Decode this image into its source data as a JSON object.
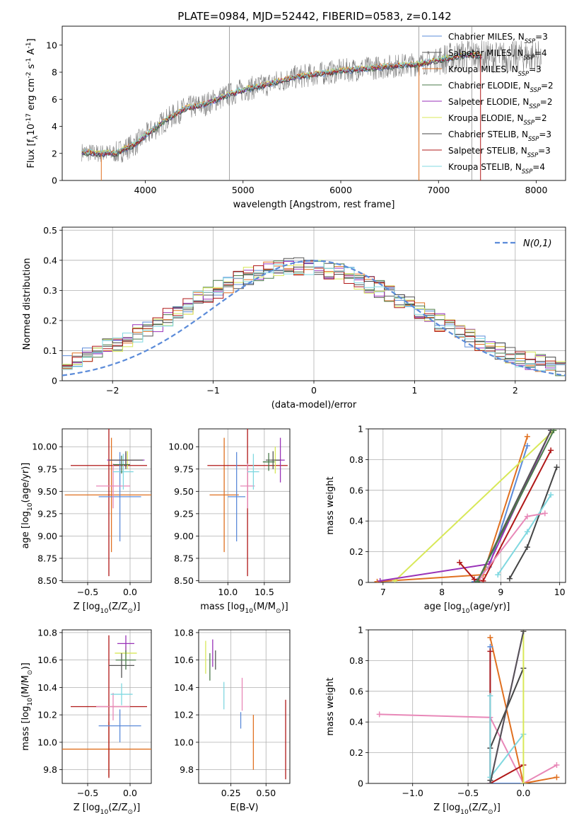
{
  "figure": {
    "title": "PLATE=0984, MJD=52442, FIBERID=0583, z=0.142"
  },
  "chart_data": [
    {
      "id": "spectrum",
      "type": "line",
      "xlabel": "wavelength [Angstrom, rest frame]",
      "ylabel": "Flux [f_λ10^-17 erg cm^-2 s^-1 A^-1]",
      "xlim": [
        3150,
        8300
      ],
      "ylim": [
        0,
        11.4
      ],
      "xticks": [
        4000,
        5000,
        6000,
        7000,
        8000
      ],
      "yticks": [
        0,
        2,
        4,
        6,
        8,
        10
      ],
      "grid": false,
      "legend_position": "top-right",
      "continuum": [
        [
          3350,
          2.1
        ],
        [
          3500,
          2.0
        ],
        [
          3700,
          2.0
        ],
        [
          3900,
          2.7
        ],
        [
          4000,
          3.3
        ],
        [
          4200,
          4.4
        ],
        [
          4400,
          5.3
        ],
        [
          4600,
          5.6
        ],
        [
          4800,
          6.2
        ],
        [
          5000,
          6.7
        ],
        [
          5200,
          7.0
        ],
        [
          5500,
          7.6
        ],
        [
          5800,
          7.9
        ],
        [
          6000,
          8.1
        ],
        [
          6300,
          8.3
        ],
        [
          6600,
          8.5
        ],
        [
          6800,
          8.6
        ],
        [
          7000,
          8.9
        ],
        [
          7300,
          9.3
        ],
        [
          7600,
          9.1
        ],
        [
          8000,
          9.2
        ],
        [
          8050,
          9.1
        ]
      ],
      "series": [
        {
          "name": "Chabrier MILES, N_SSP=3",
          "color": "#5b8bd9"
        },
        {
          "name": "Salpeter MILES, N_SSP=4",
          "color": "#555555"
        },
        {
          "name": "Kroupa MILES, N_SSP=3",
          "color": "#e07020"
        },
        {
          "name": "Chabrier ELODIE, N_SSP=2",
          "color": "#4a7a4a"
        },
        {
          "name": "Salpeter ELODIE, N_SSP=2",
          "color": "#9932b8"
        },
        {
          "name": "Kroupa ELODIE, N_SSP=2",
          "color": "#d8e858"
        },
        {
          "name": "Chabrier STELIB, N_SSP=3",
          "color": "#444444"
        },
        {
          "name": "Salpeter STELIB, N_SSP=3",
          "color": "#b01818"
        },
        {
          "name": "Kroupa STELIB, N_SSP=4",
          "color": "#80d8e0"
        }
      ]
    },
    {
      "id": "residuals",
      "type": "line",
      "xlabel": "(data-model)/error",
      "ylabel": "Normed distribution",
      "xlim": [
        -2.5,
        2.5
      ],
      "ylim": [
        0,
        0.51
      ],
      "xticks": [
        -2,
        -1,
        0,
        1,
        2
      ],
      "yticks": [
        0.0,
        0.1,
        0.2,
        0.3,
        0.4,
        0.5
      ],
      "grid": true,
      "legend_position": "top-right",
      "legend": "N(0,1)",
      "gaussian": {
        "mean": 0,
        "sigma": 1,
        "color": "#5b8bd9"
      },
      "bin_width": 0.1
    },
    {
      "id": "age_vs_Z",
      "type": "scatter",
      "xlabel": "Z [log10(Z/Z⊙)]",
      "ylabel": "age [log10(age/yr)]",
      "xlim": [
        -0.8,
        0.25
      ],
      "ylim": [
        8.48,
        10.2
      ],
      "xticks": [
        -0.5,
        0.0
      ],
      "xticklabels": [
        "−0.5",
        "0.0"
      ],
      "yticks": [
        8.5,
        8.75,
        9.0,
        9.25,
        9.5,
        9.75,
        10.0
      ],
      "yticklabels": [
        "8.50",
        "8.75",
        "9.00",
        "9.25",
        "9.50",
        "9.75",
        "10.00"
      ],
      "grid": true,
      "points": [
        {
          "x": -0.22,
          "y": 9.46,
          "xerr": 0.55,
          "yerr": 0.64,
          "color": "#e07020"
        },
        {
          "x": -0.25,
          "y": 9.79,
          "xerr": 0.45,
          "yerr": 1.24,
          "color": "#b01818"
        },
        {
          "x": -0.12,
          "y": 9.44,
          "xerr": 0.25,
          "yerr": 0.5,
          "color": "#5b8bd9"
        },
        {
          "x": -0.2,
          "y": 9.56,
          "xerr": 0.2,
          "yerr": 0.25,
          "color": "#e888b8"
        },
        {
          "x": -0.08,
          "y": 9.72,
          "xerr": 0.12,
          "yerr": 0.2,
          "color": "#80d8e0"
        },
        {
          "x": -0.03,
          "y": 9.85,
          "xerr": 0.13,
          "yerr": 0.1,
          "color": "#d8e858"
        },
        {
          "x": -0.05,
          "y": 9.85,
          "xerr": 0.22,
          "yerr": 0.08,
          "color": "#9932b8"
        },
        {
          "x": -0.05,
          "y": 9.85,
          "xerr": 0.2,
          "yerr": 0.1,
          "color": "#555555"
        },
        {
          "x": -0.1,
          "y": 9.8,
          "xerr": 0.1,
          "yerr": 0.1,
          "color": "#4a7a4a"
        }
      ]
    },
    {
      "id": "age_vs_mass",
      "type": "scatter",
      "xlabel": "mass [log10(M/M⊙)]",
      "ylabel": "",
      "xlim": [
        9.6,
        10.85
      ],
      "ylim": [
        8.48,
        10.2
      ],
      "xticks": [
        10.0,
        10.5
      ],
      "xticklabels": [
        "10.0",
        "10.5"
      ],
      "yticks": [
        8.5,
        8.75,
        9.0,
        9.25,
        9.5,
        9.75,
        10.0
      ],
      "yticklabels": [
        "8.50",
        "8.75",
        "9.00",
        "9.25",
        "9.50",
        "9.75",
        "10.00"
      ],
      "grid": true,
      "points": [
        {
          "x": 9.95,
          "y": 9.46,
          "xerr": 0.2,
          "yerr": 0.64,
          "color": "#e07020"
        },
        {
          "x": 10.27,
          "y": 9.79,
          "xerr": 0.55,
          "yerr": 1.24,
          "color": "#b01818"
        },
        {
          "x": 10.12,
          "y": 9.44,
          "xerr": 0.12,
          "yerr": 0.5,
          "color": "#5b8bd9"
        },
        {
          "x": 10.27,
          "y": 9.56,
          "xerr": 0.1,
          "yerr": 0.25,
          "color": "#e888b8"
        },
        {
          "x": 10.35,
          "y": 9.72,
          "xerr": 0.08,
          "yerr": 0.2,
          "color": "#80d8e0"
        },
        {
          "x": 10.65,
          "y": 9.85,
          "xerr": 0.05,
          "yerr": 0.15,
          "color": "#d8e858"
        },
        {
          "x": 10.72,
          "y": 9.85,
          "xerr": 0.06,
          "yerr": 0.25,
          "color": "#9932b8"
        },
        {
          "x": 10.62,
          "y": 9.85,
          "xerr": 0.1,
          "yerr": 0.1,
          "color": "#555555"
        },
        {
          "x": 10.56,
          "y": 9.83,
          "xerr": 0.08,
          "yerr": 0.1,
          "color": "#4a7a4a"
        }
      ]
    },
    {
      "id": "weight_vs_age",
      "type": "line",
      "xlabel": "age [log10(age/yr)]",
      "ylabel": "mass weight",
      "xlim": [
        6.75,
        10.1
      ],
      "ylim": [
        0,
        1.0
      ],
      "xticks": [
        7,
        8,
        9,
        10
      ],
      "yticks": [
        0.0,
        0.2,
        0.4,
        0.6,
        0.8,
        1.0
      ],
      "grid": true,
      "series": [
        {
          "color": "#e07020",
          "x": [
            6.9,
            8.7,
            9.45
          ],
          "y": [
            0.005,
            0.05,
            0.95
          ]
        },
        {
          "color": "#5b8bd9",
          "x": [
            8.55,
            8.8,
            9.45
          ],
          "y": [
            0.005,
            0.1,
            0.89
          ]
        },
        {
          "color": "#d8e858",
          "x": [
            7.2,
            9.9
          ],
          "y": [
            0.01,
            0.99
          ]
        },
        {
          "color": "#9932b8",
          "x": [
            6.95,
            8.8,
            9.85
          ],
          "y": [
            0.01,
            0.12,
            0.99
          ]
        },
        {
          "color": "#b01818",
          "x": [
            8.3,
            8.55,
            8.7,
            9.85
          ],
          "y": [
            0.13,
            0.02,
            0.01,
            0.86
          ]
        },
        {
          "color": "#555555",
          "x": [
            8.6,
            9.85
          ],
          "y": [
            0.005,
            0.99
          ]
        },
        {
          "color": "#444444",
          "x": [
            9.15,
            9.45,
            9.95
          ],
          "y": [
            0.025,
            0.23,
            0.75
          ]
        },
        {
          "color": "#80d8e0",
          "x": [
            8.95,
            9.45,
            9.85
          ],
          "y": [
            0.05,
            0.33,
            0.57
          ]
        },
        {
          "color": "#e888b8",
          "x": [
            8.65,
            9.45,
            9.75
          ],
          "y": [
            0.03,
            0.43,
            0.45
          ]
        },
        {
          "color": "#4a7a4a",
          "x": [
            8.6,
            9.9
          ],
          "y": [
            0.005,
            0.99
          ]
        }
      ]
    },
    {
      "id": "mass_vs_Z",
      "type": "scatter",
      "xlabel": "Z [log10(Z/Z⊙)]",
      "ylabel": "mass [log10(M/M⊙)]",
      "xlim": [
        -0.8,
        0.25
      ],
      "ylim": [
        9.7,
        10.82
      ],
      "xticks": [
        -0.5,
        0.0
      ],
      "xticklabels": [
        "−0.5",
        "0.0"
      ],
      "yticks": [
        9.8,
        10.0,
        10.2,
        10.4,
        10.6,
        10.8
      ],
      "yticklabels": [
        "9.8",
        "10.0",
        "10.2",
        "10.4",
        "10.6",
        "10.8"
      ],
      "grid": true,
      "points": [
        {
          "x": -0.25,
          "y": 9.95,
          "xerr": 0.55,
          "yerr": 0.2,
          "color": "#e07020"
        },
        {
          "x": -0.25,
          "y": 10.26,
          "xerr": 0.45,
          "yerr": 0.52,
          "color": "#b01818"
        },
        {
          "x": -0.12,
          "y": 10.12,
          "xerr": 0.25,
          "yerr": 0.12,
          "color": "#5b8bd9"
        },
        {
          "x": -0.2,
          "y": 10.26,
          "xerr": 0.2,
          "yerr": 0.1,
          "color": "#e888b8"
        },
        {
          "x": -0.1,
          "y": 10.35,
          "xerr": 0.13,
          "yerr": 0.08,
          "color": "#80d8e0"
        },
        {
          "x": -0.05,
          "y": 10.65,
          "xerr": 0.13,
          "yerr": 0.05,
          "color": "#d8e858"
        },
        {
          "x": -0.05,
          "y": 10.72,
          "xerr": 0.1,
          "yerr": 0.06,
          "color": "#9932b8"
        },
        {
          "x": -0.1,
          "y": 10.56,
          "xerr": 0.15,
          "yerr": 0.09,
          "color": "#555555"
        },
        {
          "x": -0.05,
          "y": 10.6,
          "xerr": 0.12,
          "yerr": 0.07,
          "color": "#4a7a4a"
        }
      ]
    },
    {
      "id": "mass_vs_ebv",
      "type": "scatter",
      "xlabel": "E(B-V)",
      "ylabel": "",
      "xlim": [
        0.02,
        0.67
      ],
      "ylim": [
        9.7,
        10.82
      ],
      "xticks": [
        0.25,
        0.5
      ],
      "xticklabels": [
        "0.25",
        "0.50"
      ],
      "yticks": [
        9.8,
        10.0,
        10.2,
        10.4,
        10.6,
        10.8
      ],
      "yticklabels": [
        "9.8",
        "10.0",
        "10.2",
        "10.4",
        "10.6",
        "10.8"
      ],
      "grid": true,
      "points": [
        {
          "x": 0.07,
          "y": 10.62,
          "yerr": 0.12,
          "color": "#d8e858"
        },
        {
          "x": 0.12,
          "y": 10.65,
          "yerr": 0.1,
          "color": "#9932b8"
        },
        {
          "x": 0.14,
          "y": 10.6,
          "yerr": 0.07,
          "color": "#555555"
        },
        {
          "x": 0.1,
          "y": 10.55,
          "yerr": 0.1,
          "color": "#4a7a4a"
        },
        {
          "x": 0.2,
          "y": 10.34,
          "yerr": 0.1,
          "color": "#80d8e0"
        },
        {
          "x": 0.33,
          "y": 10.35,
          "yerr": 0.12,
          "color": "#e888b8"
        },
        {
          "x": 0.32,
          "y": 10.16,
          "yerr": 0.06,
          "color": "#5b8bd9"
        },
        {
          "x": 0.41,
          "y": 10.0,
          "yerr": 0.2,
          "color": "#e07020"
        },
        {
          "x": 0.64,
          "y": 10.02,
          "yerr": 0.29,
          "color": "#b01818"
        }
      ]
    },
    {
      "id": "weight_vs_Z",
      "type": "line",
      "xlabel": "Z [log10(Z/Z⊙)]",
      "ylabel": "mass weight",
      "xlim": [
        -1.4,
        0.38
      ],
      "ylim": [
        0,
        1.0
      ],
      "xticks": [
        -1.0,
        -0.5,
        0.0
      ],
      "xticklabels": [
        "−1.0",
        "−0.5",
        "0.0"
      ],
      "yticks": [
        0.0,
        0.2,
        0.4,
        0.6,
        0.8,
        1.0
      ],
      "grid": true,
      "series": [
        {
          "color": "#e888b8",
          "x": [
            -1.3,
            -0.3,
            0.0,
            0.3
          ],
          "y": [
            0.45,
            0.43,
            0.0,
            0.12
          ]
        },
        {
          "color": "#e07020",
          "x": [
            -0.3,
            0.0,
            0.3
          ],
          "y": [
            0.95,
            0.0,
            0.04
          ]
        },
        {
          "color": "#5b8bd9",
          "x": [
            -0.3,
            -0.3,
            0.0
          ],
          "y": [
            0.89,
            0.0,
            0.0
          ]
        },
        {
          "color": "#b01818",
          "x": [
            -0.3,
            -0.3,
            0.0
          ],
          "y": [
            0.86,
            0.0,
            0.12
          ]
        },
        {
          "color": "#9932b8",
          "x": [
            -0.3,
            0.0
          ],
          "y": [
            0.0,
            0.99
          ]
        },
        {
          "color": "#444444",
          "x": [
            -0.3,
            -0.3,
            0.0
          ],
          "y": [
            0.02,
            0.23,
            0.75
          ]
        },
        {
          "color": "#80d8e0",
          "x": [
            -0.3,
            -0.3,
            0.0
          ],
          "y": [
            0.57,
            0.04,
            0.32
          ]
        },
        {
          "color": "#d8e858",
          "x": [
            0.0,
            0.0
          ],
          "y": [
            0.0,
            0.99
          ]
        },
        {
          "color": "#555555",
          "x": [
            -0.3,
            0.0
          ],
          "y": [
            0.0,
            0.99
          ]
        }
      ]
    }
  ]
}
